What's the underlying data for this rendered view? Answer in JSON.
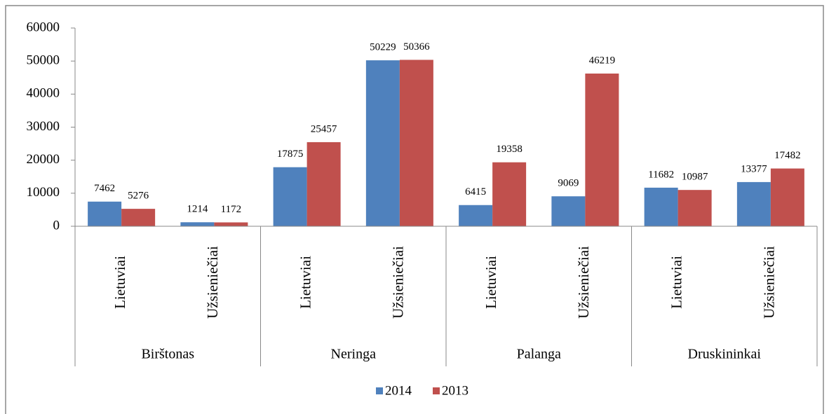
{
  "chart_data": {
    "type": "bar",
    "categories": [
      "Lietuviai",
      "Užsieniečiai",
      "Lietuviai",
      "Užsieniečiai",
      "Lietuviai",
      "Užsieniečiai",
      "Lietuviai",
      "Užsieniečiai"
    ],
    "category_groups": [
      "Birštonas",
      "Neringa",
      "Palanga",
      "Druskininkai"
    ],
    "series": [
      {
        "name": "2014",
        "color": "#4f81bd",
        "values": [
          7462,
          1214,
          17875,
          50229,
          6415,
          9069,
          11682,
          13377
        ]
      },
      {
        "name": "2013",
        "color": "#c0504d",
        "values": [
          5276,
          1172,
          25457,
          50366,
          19358,
          46219,
          10987,
          17482
        ]
      }
    ],
    "ylim": [
      0,
      60000
    ],
    "yticks": [
      0,
      10000,
      20000,
      30000,
      40000,
      50000,
      60000
    ],
    "grid": false,
    "legend": "bottom"
  }
}
